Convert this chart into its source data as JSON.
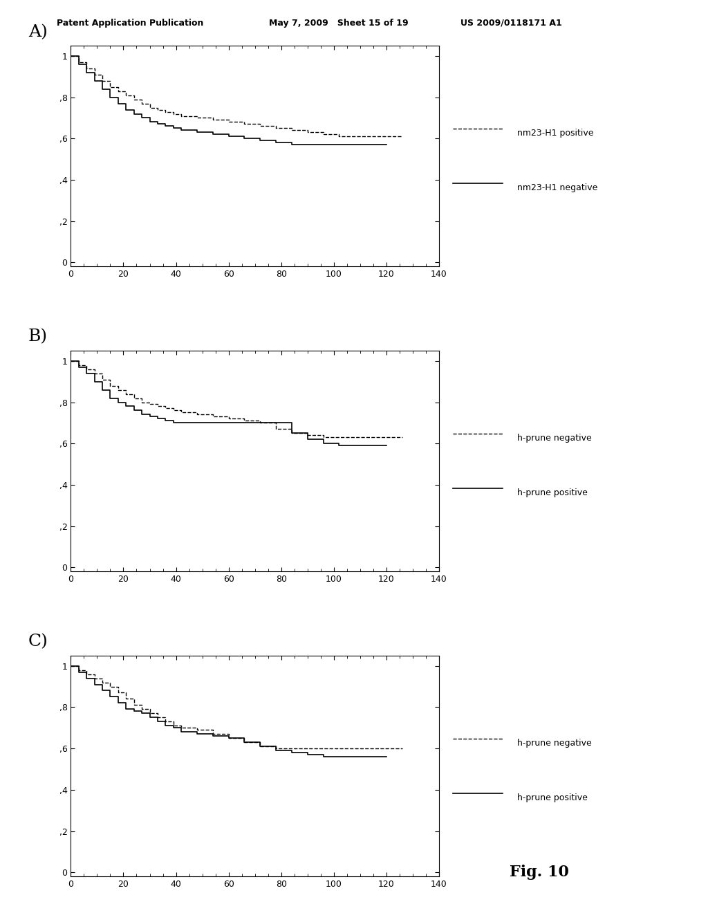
{
  "header_left": "Patent Application Publication",
  "header_mid": "May 7, 2009   Sheet 15 of 19",
  "header_right": "US 2009/0118171 A1",
  "fig_label": "Fig. 10",
  "background_color": "#ffffff",
  "plots": [
    {
      "label": "A)",
      "xlim": [
        0,
        140
      ],
      "ylim": [
        0,
        1.05
      ],
      "xticks": [
        0,
        20,
        40,
        60,
        80,
        100,
        120,
        140
      ],
      "yticks": [
        0,
        0.2,
        0.4,
        0.6,
        0.8,
        1.0
      ],
      "yticklabels": [
        "0",
        ",2",
        ",4",
        ",6",
        ",8",
        "1"
      ],
      "legend": [
        "nm23-H1 positive",
        "nm23-H1 negative"
      ],
      "curve1_x": [
        0,
        3,
        3,
        6,
        6,
        9,
        9,
        12,
        12,
        15,
        15,
        18,
        18,
        21,
        21,
        24,
        24,
        27,
        27,
        30,
        30,
        33,
        33,
        36,
        36,
        39,
        39,
        42,
        42,
        48,
        48,
        54,
        54,
        60,
        60,
        66,
        66,
        72,
        72,
        78,
        78,
        84,
        84,
        90,
        90,
        96,
        96,
        102,
        102,
        108,
        108,
        114,
        114,
        120,
        120,
        126
      ],
      "curve1_y": [
        1.0,
        1.0,
        0.97,
        0.97,
        0.94,
        0.94,
        0.91,
        0.91,
        0.88,
        0.88,
        0.85,
        0.85,
        0.83,
        0.83,
        0.81,
        0.81,
        0.79,
        0.79,
        0.77,
        0.77,
        0.75,
        0.75,
        0.74,
        0.74,
        0.73,
        0.73,
        0.72,
        0.72,
        0.71,
        0.71,
        0.7,
        0.7,
        0.69,
        0.69,
        0.68,
        0.68,
        0.67,
        0.67,
        0.66,
        0.66,
        0.65,
        0.65,
        0.64,
        0.64,
        0.63,
        0.63,
        0.62,
        0.62,
        0.61,
        0.61,
        0.61,
        0.61,
        0.61,
        0.61,
        0.61,
        0.61
      ],
      "curve2_x": [
        0,
        3,
        3,
        6,
        6,
        9,
        9,
        12,
        12,
        15,
        15,
        18,
        18,
        21,
        21,
        24,
        24,
        27,
        27,
        30,
        30,
        33,
        33,
        36,
        36,
        39,
        39,
        42,
        42,
        48,
        48,
        54,
        54,
        60,
        60,
        66,
        66,
        72,
        72,
        78,
        78,
        84,
        84,
        90,
        90,
        96,
        96,
        102,
        102,
        108,
        108,
        120
      ],
      "curve2_y": [
        1.0,
        1.0,
        0.96,
        0.96,
        0.92,
        0.92,
        0.88,
        0.88,
        0.84,
        0.84,
        0.8,
        0.8,
        0.77,
        0.77,
        0.74,
        0.74,
        0.72,
        0.72,
        0.7,
        0.7,
        0.68,
        0.68,
        0.67,
        0.67,
        0.66,
        0.66,
        0.65,
        0.65,
        0.64,
        0.64,
        0.63,
        0.63,
        0.62,
        0.62,
        0.61,
        0.61,
        0.6,
        0.6,
        0.59,
        0.59,
        0.58,
        0.58,
        0.57,
        0.57,
        0.57,
        0.57,
        0.57,
        0.57,
        0.57,
        0.57,
        0.57,
        0.57
      ]
    },
    {
      "label": "B)",
      "xlim": [
        0,
        140
      ],
      "ylim": [
        0,
        1.05
      ],
      "xticks": [
        0,
        20,
        40,
        60,
        80,
        100,
        120,
        140
      ],
      "yticks": [
        0,
        0.2,
        0.4,
        0.6,
        0.8,
        1.0
      ],
      "yticklabels": [
        "0",
        ",2",
        ",4",
        ",6",
        ",8",
        "1"
      ],
      "legend": [
        "h-prune negative",
        "h-prune positive"
      ],
      "curve1_x": [
        0,
        3,
        3,
        6,
        6,
        9,
        9,
        12,
        12,
        15,
        15,
        18,
        18,
        21,
        21,
        24,
        24,
        27,
        27,
        30,
        30,
        33,
        33,
        36,
        36,
        39,
        39,
        42,
        42,
        48,
        48,
        54,
        54,
        60,
        60,
        66,
        66,
        72,
        72,
        78,
        78,
        84,
        84,
        90,
        90,
        96,
        96,
        102,
        102,
        108,
        108,
        114,
        114,
        120,
        120,
        126
      ],
      "curve1_y": [
        1.0,
        1.0,
        0.98,
        0.98,
        0.96,
        0.96,
        0.94,
        0.94,
        0.91,
        0.91,
        0.88,
        0.88,
        0.86,
        0.86,
        0.84,
        0.84,
        0.82,
        0.82,
        0.8,
        0.8,
        0.79,
        0.79,
        0.78,
        0.78,
        0.77,
        0.77,
        0.76,
        0.76,
        0.75,
        0.75,
        0.74,
        0.74,
        0.73,
        0.73,
        0.72,
        0.72,
        0.71,
        0.71,
        0.7,
        0.7,
        0.67,
        0.67,
        0.65,
        0.65,
        0.64,
        0.64,
        0.63,
        0.63,
        0.63,
        0.63,
        0.63,
        0.63,
        0.63,
        0.63,
        0.63,
        0.63
      ],
      "curve2_x": [
        0,
        3,
        3,
        6,
        6,
        9,
        9,
        12,
        12,
        15,
        15,
        18,
        18,
        21,
        21,
        24,
        24,
        27,
        27,
        30,
        30,
        33,
        33,
        36,
        36,
        39,
        39,
        42,
        42,
        48,
        48,
        54,
        54,
        60,
        60,
        66,
        66,
        72,
        72,
        78,
        78,
        84,
        84,
        90,
        90,
        96,
        96,
        102,
        102,
        108,
        108,
        120
      ],
      "curve2_y": [
        1.0,
        1.0,
        0.97,
        0.97,
        0.94,
        0.94,
        0.9,
        0.9,
        0.86,
        0.86,
        0.82,
        0.82,
        0.8,
        0.8,
        0.78,
        0.78,
        0.76,
        0.76,
        0.74,
        0.74,
        0.73,
        0.73,
        0.72,
        0.72,
        0.71,
        0.71,
        0.7,
        0.7,
        0.7,
        0.7,
        0.7,
        0.7,
        0.7,
        0.7,
        0.7,
        0.7,
        0.7,
        0.7,
        0.7,
        0.7,
        0.7,
        0.7,
        0.65,
        0.65,
        0.62,
        0.62,
        0.6,
        0.6,
        0.59,
        0.59,
        0.59,
        0.59
      ]
    },
    {
      "label": "C)",
      "xlim": [
        0,
        140
      ],
      "ylim": [
        0,
        1.05
      ],
      "xticks": [
        0,
        20,
        40,
        60,
        80,
        100,
        120,
        140
      ],
      "yticks": [
        0,
        0.2,
        0.4,
        0.6,
        0.8,
        1.0
      ],
      "yticklabels": [
        "0",
        ",2",
        ",4",
        ",6",
        ",8",
        "1"
      ],
      "legend": [
        "h-prune negative",
        "h-prune positive"
      ],
      "curve1_x": [
        0,
        3,
        3,
        6,
        6,
        9,
        9,
        12,
        12,
        15,
        15,
        18,
        18,
        21,
        21,
        24,
        24,
        27,
        27,
        30,
        30,
        33,
        33,
        36,
        36,
        39,
        39,
        42,
        42,
        48,
        48,
        54,
        54,
        60,
        60,
        66,
        66,
        72,
        72,
        78,
        78,
        84,
        84,
        90,
        90,
        96,
        96,
        102,
        102,
        108,
        108,
        114,
        114,
        120,
        120,
        126
      ],
      "curve1_y": [
        1.0,
        1.0,
        0.98,
        0.98,
        0.96,
        0.96,
        0.94,
        0.94,
        0.92,
        0.92,
        0.9,
        0.9,
        0.87,
        0.87,
        0.84,
        0.84,
        0.81,
        0.81,
        0.79,
        0.79,
        0.77,
        0.77,
        0.75,
        0.75,
        0.73,
        0.73,
        0.71,
        0.71,
        0.7,
        0.7,
        0.69,
        0.69,
        0.67,
        0.67,
        0.65,
        0.65,
        0.63,
        0.63,
        0.61,
        0.61,
        0.6,
        0.6,
        0.6,
        0.6,
        0.6,
        0.6,
        0.6,
        0.6,
        0.6,
        0.6,
        0.6,
        0.6,
        0.6,
        0.6,
        0.6,
        0.6
      ],
      "curve2_x": [
        0,
        3,
        3,
        6,
        6,
        9,
        9,
        12,
        12,
        15,
        15,
        18,
        18,
        21,
        21,
        24,
        24,
        27,
        27,
        30,
        30,
        33,
        33,
        36,
        36,
        39,
        39,
        42,
        42,
        48,
        48,
        54,
        54,
        60,
        60,
        66,
        66,
        72,
        72,
        78,
        78,
        84,
        84,
        90,
        90,
        96,
        96,
        102,
        102,
        108,
        108,
        120
      ],
      "curve2_y": [
        1.0,
        1.0,
        0.97,
        0.97,
        0.94,
        0.94,
        0.91,
        0.91,
        0.88,
        0.88,
        0.85,
        0.85,
        0.82,
        0.82,
        0.79,
        0.79,
        0.78,
        0.78,
        0.77,
        0.77,
        0.75,
        0.75,
        0.73,
        0.73,
        0.71,
        0.71,
        0.7,
        0.7,
        0.68,
        0.68,
        0.67,
        0.67,
        0.66,
        0.66,
        0.65,
        0.65,
        0.63,
        0.63,
        0.61,
        0.61,
        0.59,
        0.59,
        0.58,
        0.58,
        0.57,
        0.57,
        0.56,
        0.56,
        0.56,
        0.56,
        0.56,
        0.56
      ]
    }
  ]
}
